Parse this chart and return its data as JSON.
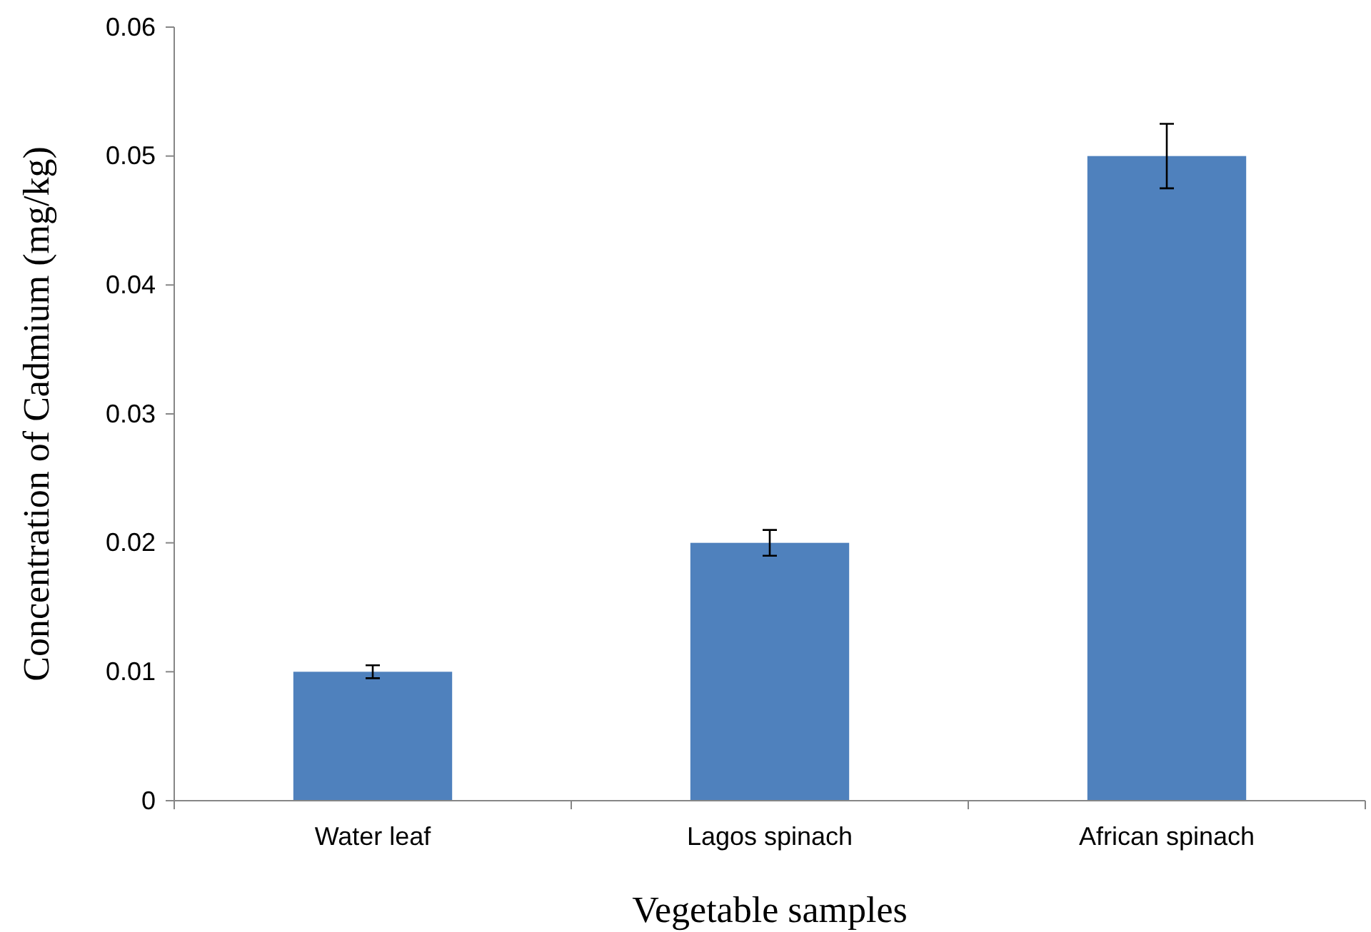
{
  "chart_data": {
    "type": "bar",
    "xlabel": "Vegetable samples",
    "ylabel": "Concentration of Cadmium (mg/kg)",
    "categories": [
      "Water leaf",
      "Lagos spinach",
      "African spinach"
    ],
    "values": [
      0.01,
      0.02,
      0.05
    ],
    "errors": [
      0.0005,
      0.001,
      0.0025
    ],
    "color": "#4f81bd",
    "ylim": [
      0,
      0.06
    ],
    "yticks": [
      {
        "value": 0,
        "label": "0"
      },
      0.01,
      0.02,
      0.03,
      0.04,
      0.05,
      0.06
    ],
    "grid": false
  }
}
